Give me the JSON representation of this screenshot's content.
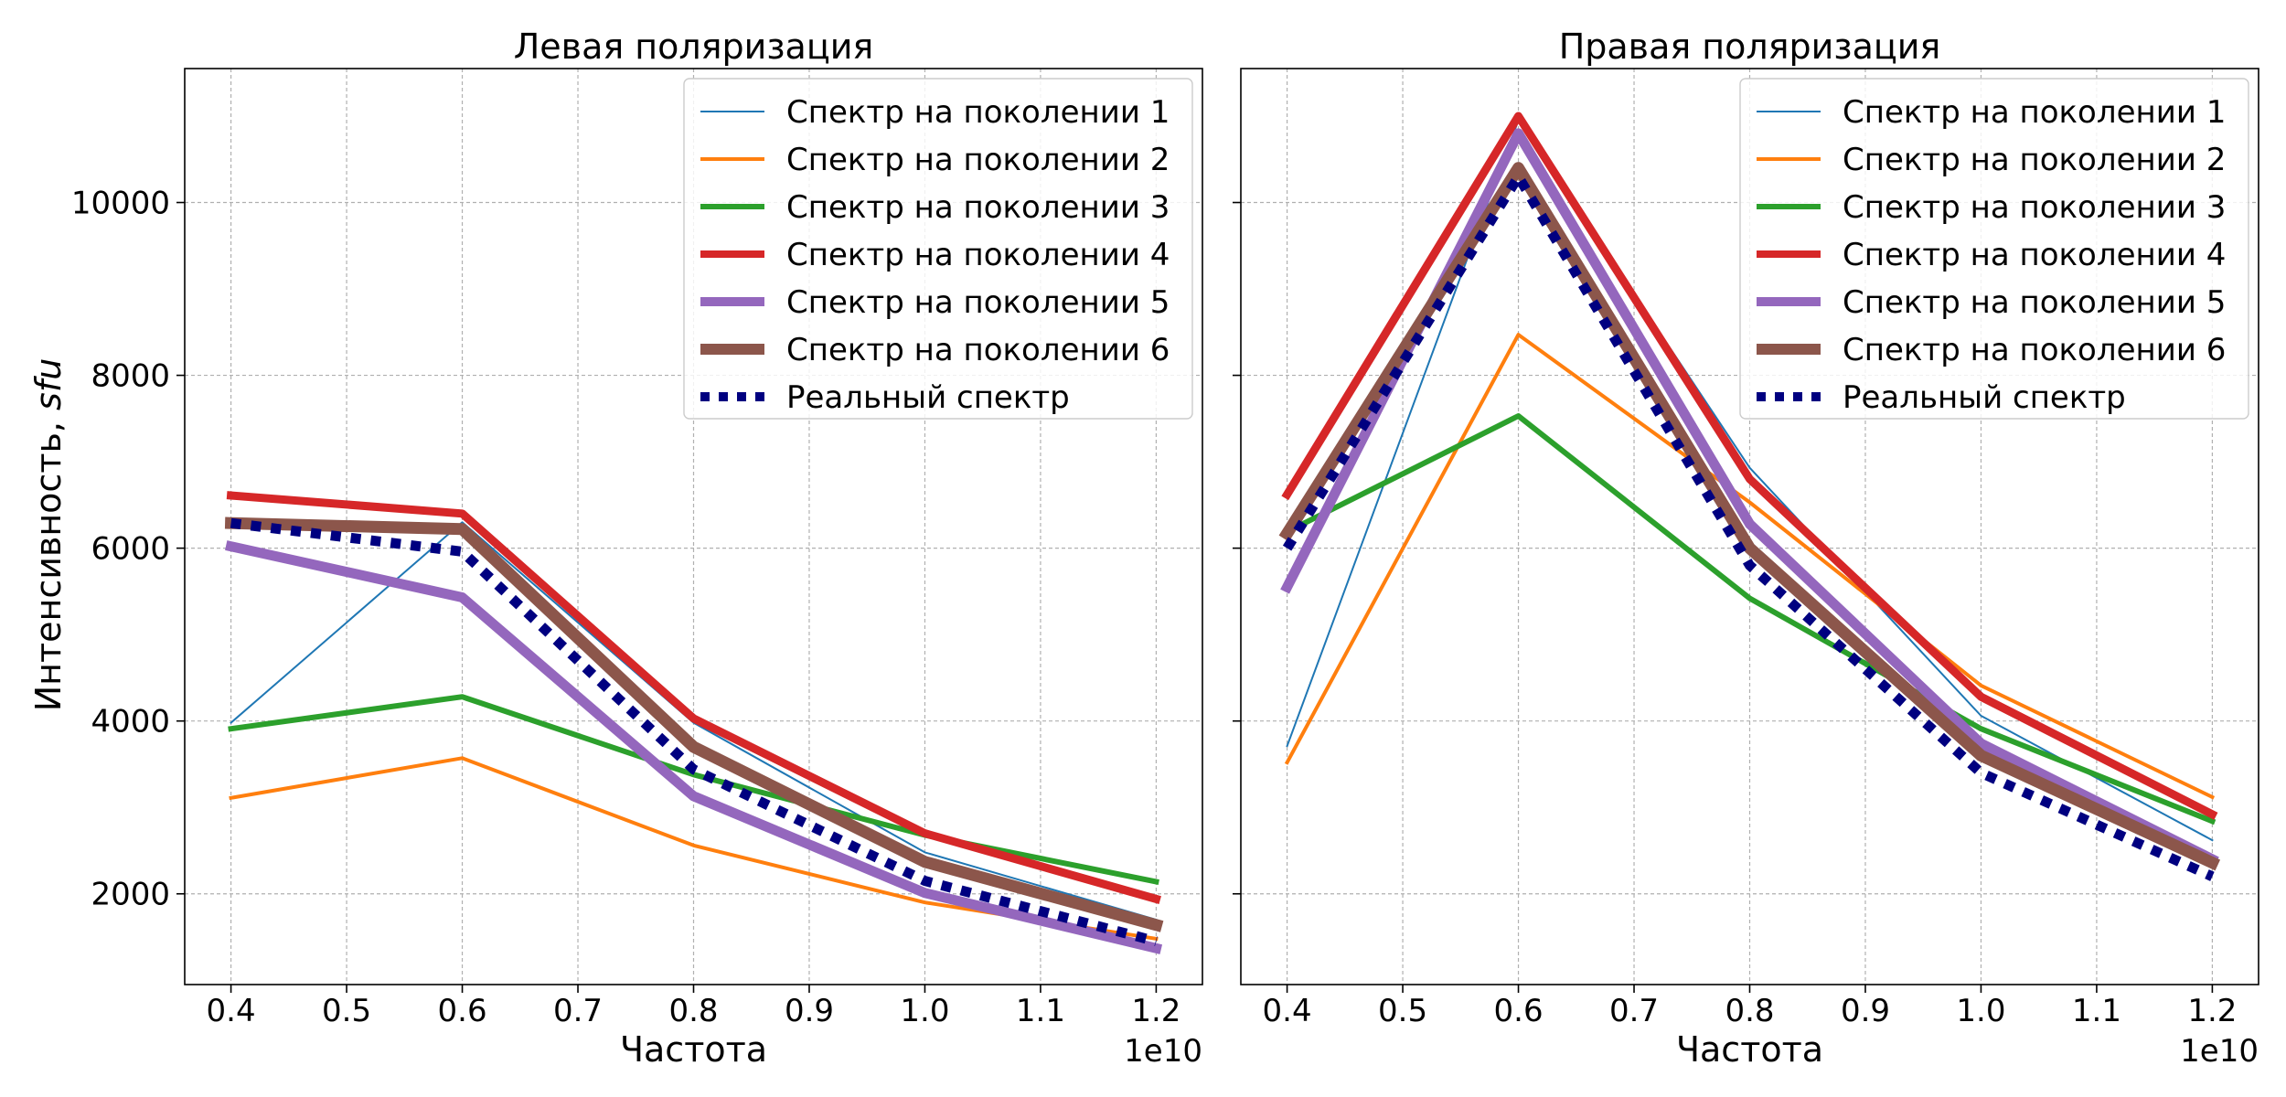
{
  "figure": {
    "ylabel_main": "Интенсивность, ",
    "ylabel_unit": "sfu",
    "xlabel": "Частота",
    "x_offset_label": "1e10"
  },
  "legend_labels": [
    "Спектр на поколении 1",
    "Спектр на поколении 2",
    "Спектр на поколении 3",
    "Спектр на поколении 4",
    "Спектр на поколении 5",
    "Спектр на поколении 6",
    "Реальный спектр"
  ],
  "chart_data": [
    {
      "type": "line",
      "title": "Левая поляризация",
      "xlabel": "Частота",
      "ylabel": "Интенсивность, sfu",
      "x": [
        0.4,
        0.6,
        0.8,
        1.0,
        1.2
      ],
      "x_unit_multiplier": "1e10",
      "xlim": [
        0.36,
        1.24
      ],
      "ylim": [
        950,
        11550
      ],
      "xticks": [
        0.4,
        0.5,
        0.6,
        0.7,
        0.8,
        0.9,
        1.0,
        1.1,
        1.2
      ],
      "yticks": [
        2000,
        4000,
        6000,
        8000,
        10000
      ],
      "grid": true,
      "legend_position": "top-right",
      "series": [
        {
          "name": "Спектр на поколении 1",
          "color": "#1f77b4",
          "style": "solid",
          "values": [
            3980,
            6300,
            3980,
            2480,
            1700
          ]
        },
        {
          "name": "Спектр на поколении 2",
          "color": "#ff7f0e",
          "style": "solid",
          "values": [
            3110,
            3570,
            2560,
            1900,
            1480
          ]
        },
        {
          "name": "Спектр на поколении 3",
          "color": "#2ca02c",
          "style": "solid",
          "values": [
            3910,
            4280,
            3380,
            2680,
            2140
          ]
        },
        {
          "name": "Спектр на поколении 4",
          "color": "#d62728",
          "style": "solid",
          "values": [
            6610,
            6400,
            4030,
            2700,
            1940
          ]
        },
        {
          "name": "Спектр на поколении 5",
          "color": "#9467bd",
          "style": "solid",
          "values": [
            6020,
            5430,
            3130,
            2010,
            1370
          ]
        },
        {
          "name": "Спектр на поколении 6",
          "color": "#8c564b",
          "style": "solid",
          "values": [
            6290,
            6220,
            3700,
            2370,
            1640
          ]
        },
        {
          "name": "Реальный спектр",
          "color": "#000080",
          "style": "dotted",
          "values": [
            6290,
            5960,
            3440,
            2150,
            1450
          ]
        }
      ]
    },
    {
      "type": "line",
      "title": "Правая поляризация",
      "xlabel": "Частота",
      "ylabel": "",
      "x": [
        0.4,
        0.6,
        0.8,
        1.0,
        1.2
      ],
      "x_unit_multiplier": "1e10",
      "xlim": [
        0.36,
        1.24
      ],
      "ylim": [
        950,
        11550
      ],
      "xticks": [
        0.4,
        0.5,
        0.6,
        0.7,
        0.8,
        0.9,
        1.0,
        1.1,
        1.2
      ],
      "yticks": [
        2000,
        4000,
        6000,
        8000,
        10000
      ],
      "grid": true,
      "legend_position": "top-right",
      "series": [
        {
          "name": "Спектр на поколении 1",
          "color": "#1f77b4",
          "style": "solid",
          "values": [
            3710,
            10950,
            6930,
            4060,
            2620
          ]
        },
        {
          "name": "Спектр на поколении 2",
          "color": "#ff7f0e",
          "style": "solid",
          "values": [
            3520,
            8470,
            6530,
            4410,
            3120
          ]
        },
        {
          "name": "Спектр на поколении 3",
          "color": "#2ca02c",
          "style": "solid",
          "values": [
            6190,
            7530,
            5420,
            3910,
            2840
          ]
        },
        {
          "name": "Спектр на поколении 4",
          "color": "#d62728",
          "style": "solid",
          "values": [
            6620,
            11000,
            6800,
            4280,
            2920
          ]
        },
        {
          "name": "Спектр на поколении 5",
          "color": "#9467bd",
          "style": "solid",
          "values": [
            5550,
            10800,
            6280,
            3740,
            2400
          ]
        },
        {
          "name": "Спектр на поколении 6",
          "color": "#8c564b",
          "style": "solid",
          "values": [
            6170,
            10400,
            6000,
            3600,
            2360
          ]
        },
        {
          "name": "Реальный спектр",
          "color": "#000080",
          "style": "dotted",
          "values": [
            6000,
            10300,
            5800,
            3400,
            2200
          ]
        }
      ]
    }
  ]
}
